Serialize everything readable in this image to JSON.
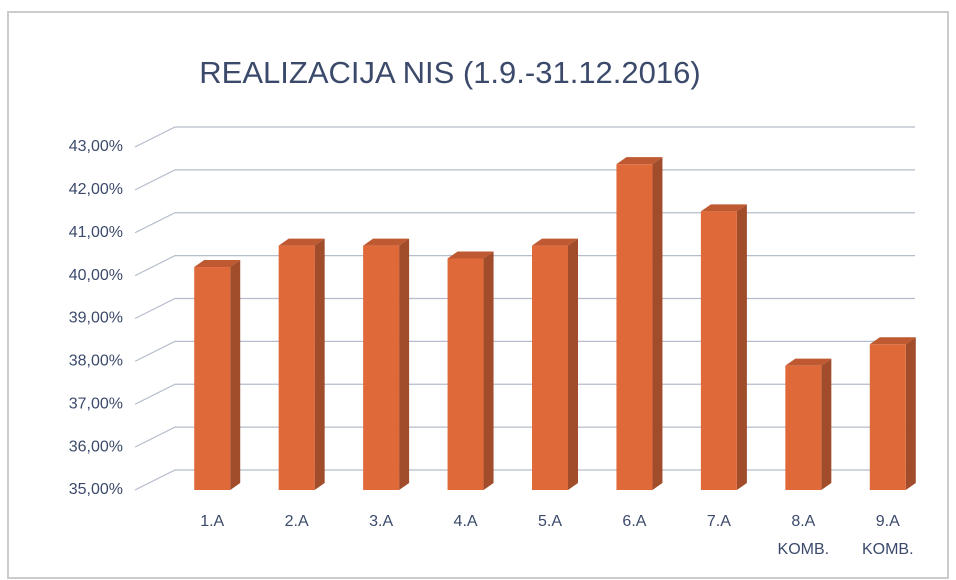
{
  "chart_data": {
    "type": "bar3d",
    "title": "REALIZACIJA NIS  (1.9.-31.12.2016)",
    "categories": [
      "1.A",
      "2.A",
      "3.A",
      "4.A",
      "5.A",
      "6.A",
      "7.A",
      "8.A KOMB.",
      "9.A KOMB."
    ],
    "values": [
      40.2,
      40.7,
      40.7,
      40.4,
      40.7,
      42.6,
      41.5,
      37.9,
      38.4
    ],
    "color": "#e0693a",
    "ylim": [
      35,
      43
    ],
    "yticks": [
      {
        "value": 35,
        "label": "35,00%"
      },
      {
        "value": 36,
        "label": "36,00%"
      },
      {
        "value": 37,
        "label": "37,00%"
      },
      {
        "value": 38,
        "label": "38,00%"
      },
      {
        "value": 39,
        "label": "39,00%"
      },
      {
        "value": 40,
        "label": "40,00%"
      },
      {
        "value": 41,
        "label": "41,00%"
      },
      {
        "value": 42,
        "label": "42,00%"
      },
      {
        "value": 43,
        "label": "43,00%"
      }
    ],
    "grid": true
  }
}
